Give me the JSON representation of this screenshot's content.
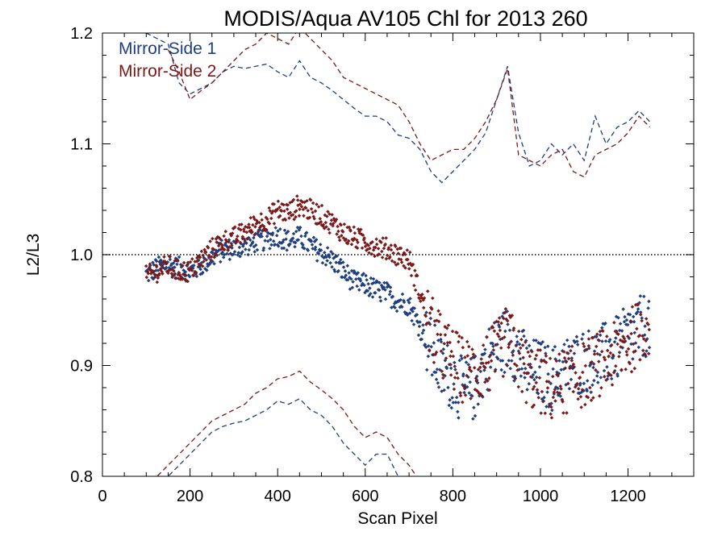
{
  "chart_data": {
    "type": "scatter",
    "title": "MODIS/Aqua AV105 Chl for 2013 260",
    "xlabel": "Scan Pixel",
    "ylabel": "L2/L3",
    "xlim": [
      0,
      1350
    ],
    "ylim": [
      0.8,
      1.2
    ],
    "xticks": [
      0,
      200,
      400,
      600,
      800,
      1000,
      1200
    ],
    "yticks": [
      0.8,
      0.9,
      1.0,
      1.1,
      1.2
    ],
    "xtick_labels": [
      "0",
      "200",
      "400",
      "600",
      "800",
      "1000",
      "1200"
    ],
    "ytick_labels": [
      "0.8",
      "0.9",
      "1.0",
      "1.1",
      "1.2"
    ],
    "reference_line": 1.0,
    "legend_position": "top-left",
    "grid": false,
    "series": [
      {
        "name": "Mirror-Side 1",
        "color": "#1f3f80",
        "points": {
          "x": [
            100,
            125,
            150,
            175,
            200,
            225,
            250,
            275,
            300,
            325,
            350,
            375,
            400,
            425,
            450,
            475,
            500,
            525,
            550,
            575,
            600,
            625,
            650,
            675,
            700,
            725,
            750,
            775,
            800,
            825,
            850,
            875,
            900,
            925,
            950,
            975,
            1000,
            1025,
            1050,
            1075,
            1100,
            1125,
            1150,
            1175,
            1200,
            1225,
            1250
          ],
          "y": [
            0.982,
            0.988,
            0.99,
            0.988,
            0.985,
            0.99,
            0.998,
            1.004,
            1.006,
            1.008,
            1.012,
            1.014,
            1.018,
            1.012,
            1.016,
            1.008,
            1.002,
            0.995,
            0.985,
            0.975,
            0.973,
            0.968,
            0.965,
            0.958,
            0.955,
            0.935,
            0.915,
            0.895,
            0.89,
            0.875,
            0.88,
            0.905,
            0.915,
            0.925,
            0.91,
            0.895,
            0.895,
            0.888,
            0.895,
            0.9,
            0.905,
            0.905,
            0.91,
            0.915,
            0.925,
            0.932,
            0.94
          ]
        },
        "upper": {
          "x": [
            100,
            150,
            175,
            200,
            225,
            250,
            275,
            300,
            325,
            350,
            375,
            400,
            425,
            450,
            475,
            500,
            525,
            550,
            575,
            600,
            625,
            650,
            675,
            700,
            725,
            750,
            775,
            800,
            825,
            850,
            875,
            900,
            925,
            950,
            975,
            1000,
            1025,
            1050,
            1075,
            1100,
            1125,
            1150,
            1175,
            1200,
            1225,
            1250
          ],
          "y": [
            1.2,
            1.19,
            1.155,
            1.145,
            1.15,
            1.155,
            1.165,
            1.17,
            1.168,
            1.17,
            1.172,
            1.165,
            1.16,
            1.175,
            1.16,
            1.155,
            1.148,
            1.14,
            1.132,
            1.125,
            1.125,
            1.12,
            1.108,
            1.105,
            1.095,
            1.075,
            1.065,
            1.075,
            1.085,
            1.095,
            1.11,
            1.14,
            1.17,
            1.11,
            1.08,
            1.085,
            1.1,
            1.09,
            1.1,
            1.085,
            1.125,
            1.1,
            1.115,
            1.12,
            1.13,
            1.12
          ]
        },
        "lower": {
          "x": [
            100,
            125,
            150,
            175,
            200,
            225,
            250,
            275,
            300,
            325,
            350,
            375,
            400,
            425,
            450,
            475,
            500,
            525,
            550,
            575,
            600,
            625,
            650,
            675,
            700,
            725
          ],
          "y": [
            0.78,
            0.79,
            0.8,
            0.81,
            0.82,
            0.83,
            0.84,
            0.845,
            0.848,
            0.85,
            0.855,
            0.86,
            0.868,
            0.865,
            0.87,
            0.86,
            0.855,
            0.845,
            0.83,
            0.82,
            0.81,
            0.82,
            0.82,
            0.8,
            0.79,
            0.78
          ]
        }
      },
      {
        "name": "Mirror-Side 2",
        "color": "#7a1a1a",
        "points": {
          "x": [
            100,
            125,
            150,
            175,
            200,
            225,
            250,
            275,
            300,
            325,
            350,
            375,
            400,
            425,
            450,
            475,
            500,
            525,
            550,
            575,
            600,
            625,
            650,
            675,
            700,
            725,
            750,
            775,
            800,
            825,
            850,
            875,
            900,
            925,
            950,
            975,
            1000,
            1025,
            1050,
            1075,
            1100,
            1125,
            1150,
            1175,
            1200,
            1225,
            1250
          ],
          "y": [
            0.98,
            0.985,
            0.99,
            0.985,
            0.985,
            0.995,
            1.005,
            1.012,
            1.015,
            1.02,
            1.028,
            1.032,
            1.04,
            1.038,
            1.045,
            1.04,
            1.035,
            1.028,
            1.02,
            1.015,
            1.012,
            1.008,
            1.005,
            1.0,
            0.995,
            0.965,
            0.935,
            0.915,
            0.905,
            0.895,
            0.895,
            0.9,
            0.91,
            0.925,
            0.905,
            0.89,
            0.885,
            0.878,
            0.885,
            0.888,
            0.892,
            0.9,
            0.905,
            0.91,
            0.92,
            0.93,
            0.94
          ]
        },
        "upper": {
          "x": [
            150,
            175,
            200,
            225,
            250,
            275,
            300,
            325,
            350,
            375,
            400,
            425,
            450,
            475,
            500,
            525,
            550,
            575,
            600,
            625,
            650,
            675,
            700,
            725,
            750,
            775,
            800,
            825,
            850,
            875,
            900,
            925,
            950,
            975,
            1000,
            1025,
            1050,
            1075,
            1100,
            1125,
            1150,
            1175,
            1200,
            1225,
            1250
          ],
          "y": [
            1.185,
            1.165,
            1.14,
            1.148,
            1.155,
            1.165,
            1.175,
            1.185,
            1.19,
            1.2,
            1.195,
            1.19,
            1.205,
            1.195,
            1.185,
            1.175,
            1.16,
            1.155,
            1.15,
            1.145,
            1.14,
            1.135,
            1.12,
            1.1,
            1.085,
            1.09,
            1.095,
            1.095,
            1.105,
            1.12,
            1.14,
            1.168,
            1.09,
            1.085,
            1.08,
            1.09,
            1.095,
            1.075,
            1.07,
            1.09,
            1.095,
            1.1,
            1.11,
            1.125,
            1.115
          ]
        },
        "lower": {
          "x": [
            100,
            125,
            150,
            175,
            200,
            225,
            250,
            275,
            300,
            325,
            350,
            375,
            400,
            425,
            450,
            475,
            500,
            525,
            550,
            575,
            600,
            625,
            650,
            675,
            700,
            725
          ],
          "y": [
            0.79,
            0.8,
            0.81,
            0.82,
            0.83,
            0.84,
            0.85,
            0.855,
            0.86,
            0.865,
            0.875,
            0.88,
            0.888,
            0.89,
            0.895,
            0.885,
            0.878,
            0.87,
            0.86,
            0.845,
            0.835,
            0.84,
            0.835,
            0.82,
            0.81,
            0.795
          ]
        }
      }
    ]
  }
}
